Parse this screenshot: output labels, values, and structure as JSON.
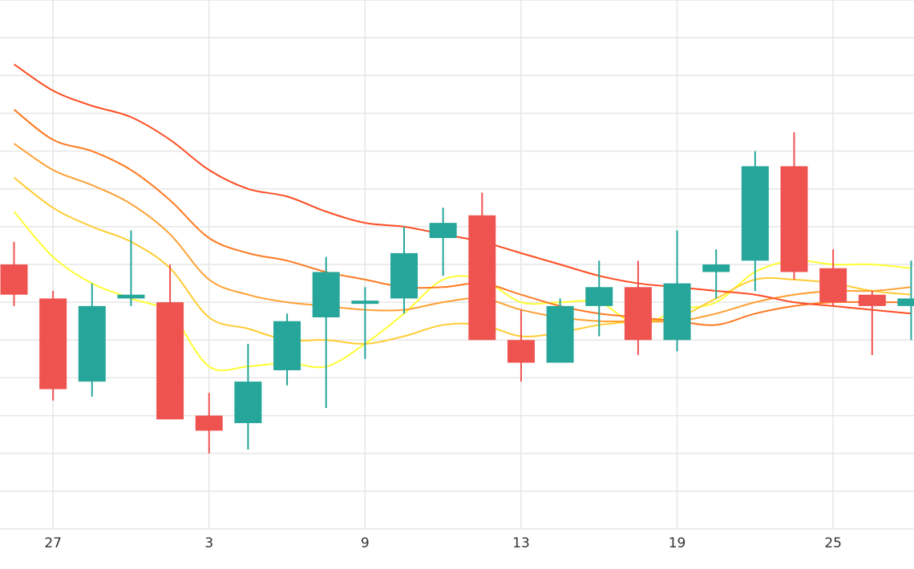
{
  "chart_data": {
    "type": "candlestick",
    "x_ticks": [
      {
        "label": "27",
        "index": 1
      },
      {
        "label": "3",
        "index": 5
      },
      {
        "label": "9",
        "index": 9
      },
      {
        "label": "13",
        "index": 13
      },
      {
        "label": "19",
        "index": 17
      },
      {
        "label": "25",
        "index": 21
      }
    ],
    "ylim": [
      0,
      14
    ],
    "grid": true,
    "colors": {
      "up": "#26a69a",
      "down": "#ef5350",
      "grid": "#e6e6e6",
      "ma": [
        "#ffff33",
        "#ffcc33",
        "#ffa033",
        "#ff7a22",
        "#ff4d22"
      ]
    },
    "candles": [
      {
        "open": 7.0,
        "close": 6.2,
        "high": 7.6,
        "low": 5.9
      },
      {
        "open": 6.1,
        "close": 3.7,
        "high": 6.3,
        "low": 3.4
      },
      {
        "open": 3.9,
        "close": 5.9,
        "high": 6.5,
        "low": 3.5
      },
      {
        "open": 6.1,
        "close": 6.2,
        "high": 7.9,
        "low": 5.9
      },
      {
        "open": 6.0,
        "close": 2.9,
        "high": 7.0,
        "low": 2.9
      },
      {
        "open": 3.0,
        "close": 2.6,
        "high": 3.6,
        "low": 2.0
      },
      {
        "open": 2.8,
        "close": 3.9,
        "high": 4.9,
        "low": 2.1
      },
      {
        "open": 4.2,
        "close": 5.5,
        "high": 5.7,
        "low": 3.8
      },
      {
        "open": 5.6,
        "close": 6.8,
        "high": 7.2,
        "low": 3.2
      },
      {
        "open": 6.0,
        "close": 6.0,
        "high": 6.4,
        "low": 4.5
      },
      {
        "open": 6.1,
        "close": 7.3,
        "high": 8.0,
        "low": 5.7
      },
      {
        "open": 7.7,
        "close": 8.1,
        "high": 8.5,
        "low": 6.7
      },
      {
        "open": 8.3,
        "close": 5.0,
        "high": 8.9,
        "low": 5.0
      },
      {
        "open": 5.0,
        "close": 4.4,
        "high": 5.8,
        "low": 3.9
      },
      {
        "open": 4.4,
        "close": 5.9,
        "high": 6.1,
        "low": 4.4
      },
      {
        "open": 5.9,
        "close": 6.4,
        "high": 7.1,
        "low": 5.1
      },
      {
        "open": 6.4,
        "close": 5.0,
        "high": 7.1,
        "low": 4.6
      },
      {
        "open": 5.0,
        "close": 6.5,
        "high": 7.9,
        "low": 4.7
      },
      {
        "open": 6.8,
        "close": 7.0,
        "high": 7.4,
        "low": 6.1
      },
      {
        "open": 7.1,
        "close": 9.6,
        "high": 10.0,
        "low": 6.3
      },
      {
        "open": 9.6,
        "close": 6.8,
        "high": 10.5,
        "low": 6.6
      },
      {
        "open": 6.9,
        "close": 6.0,
        "high": 7.4,
        "low": 5.9
      },
      {
        "open": 6.2,
        "close": 5.9,
        "high": 6.3,
        "low": 4.6
      },
      {
        "open": 5.9,
        "close": 6.1,
        "high": 7.1,
        "low": 5.0
      }
    ],
    "moving_averages": [
      {
        "values": [
          8.4,
          7.2,
          6.5,
          6.1,
          5.7,
          4.3,
          4.3,
          4.4,
          4.3,
          4.9,
          5.7,
          6.6,
          6.6,
          6.0,
          6.0,
          6.0,
          5.4,
          5.8,
          6.0,
          6.8,
          7.1,
          7.0,
          7.0,
          6.9
        ]
      },
      {
        "values": [
          9.3,
          8.5,
          8.0,
          7.6,
          6.9,
          5.6,
          5.3,
          5.0,
          5.0,
          4.9,
          5.1,
          5.4,
          5.4,
          5.1,
          5.2,
          5.4,
          5.5,
          5.6,
          6.1,
          6.6,
          6.6,
          6.5,
          6.3,
          6.2
        ]
      },
      {
        "values": [
          10.2,
          9.5,
          9.1,
          8.6,
          7.8,
          6.6,
          6.2,
          6.0,
          5.9,
          5.8,
          5.8,
          6.0,
          6.1,
          5.8,
          5.6,
          5.5,
          5.5,
          5.5,
          5.7,
          6.0,
          6.2,
          6.3,
          6.3,
          6.4
        ]
      },
      {
        "values": [
          11.1,
          10.3,
          10.0,
          9.5,
          8.7,
          7.7,
          7.3,
          7.1,
          6.8,
          6.6,
          6.4,
          6.4,
          6.5,
          6.2,
          5.9,
          5.7,
          5.6,
          5.5,
          5.4,
          5.7,
          5.9,
          6.0,
          6.0,
          6.0
        ]
      },
      {
        "values": [
          12.3,
          11.6,
          11.2,
          10.9,
          10.3,
          9.5,
          9.0,
          8.8,
          8.4,
          8.1,
          8.0,
          7.8,
          7.6,
          7.3,
          7.0,
          6.7,
          6.5,
          6.4,
          6.3,
          6.2,
          6.0,
          5.9,
          5.8,
          5.7
        ]
      }
    ]
  }
}
